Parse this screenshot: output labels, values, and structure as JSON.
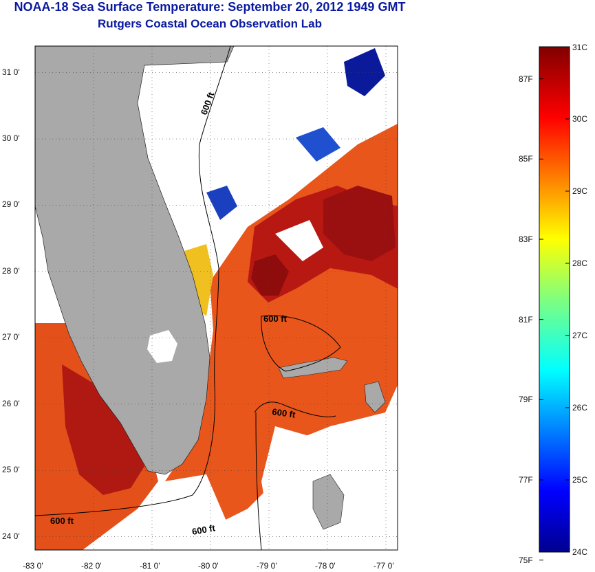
{
  "header": {
    "title": "NOAA-18 Sea Surface Temperature:  September 20, 2012 1949 GMT",
    "subtitle": "Rutgers Coastal Ocean Observation Lab"
  },
  "map": {
    "lon_range": [
      -83,
      -76.8
    ],
    "lat_range": [
      23.8,
      31.4
    ],
    "lon_ticks": [
      "-83 0'",
      "-82 0'",
      "-81 0'",
      "-80 0'",
      "-79 0'",
      "-78 0'",
      "-77 0'"
    ],
    "lat_ticks": [
      "31 0'",
      "30 0'",
      "29 0'",
      "28 0'",
      "27 0'",
      "26 0'",
      "25 0'",
      "24 0'"
    ],
    "isobath_label": "600 ft",
    "colors": {
      "land": "#a9a9a9",
      "warm": "#e8501a",
      "hot": "#a50f0f",
      "cold": "#0a1a9a",
      "cloud": "#ffffff"
    }
  },
  "colorbar": {
    "celsius": [
      "31C",
      "30C",
      "29C",
      "28C",
      "27C",
      "26C",
      "25C",
      "24C"
    ],
    "fahrenheit": [
      "87F",
      "85F",
      "83F",
      "81F",
      "79F",
      "77F",
      "75F"
    ],
    "range_c": [
      24,
      31
    ]
  }
}
